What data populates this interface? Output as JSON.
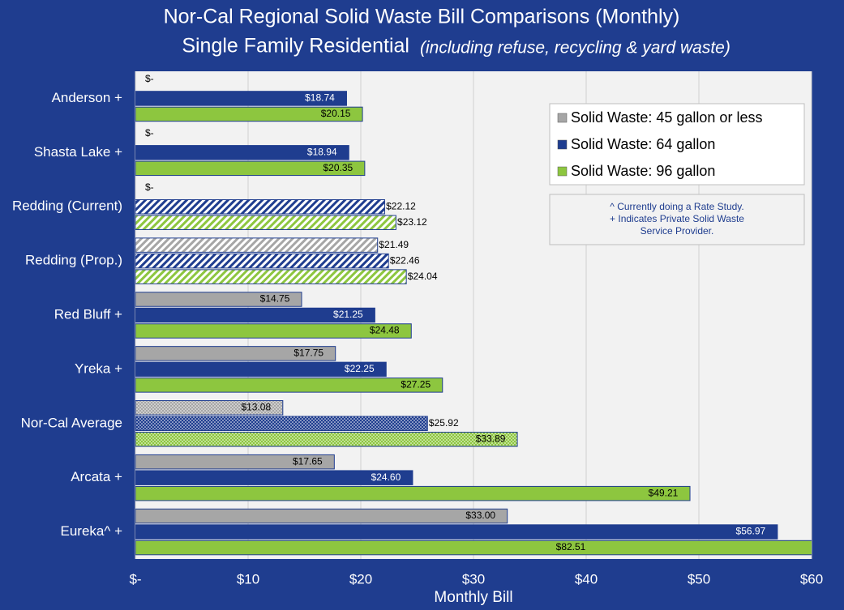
{
  "chart_data": {
    "type": "barh",
    "title": "Nor-Cal Regional Solid Waste Bill Comparisons (Monthly)",
    "subtitle": "Single Family Residential",
    "subtitle_note": "(including refuse, recycling & yard waste)",
    "x_label": "Monthly Bill",
    "categories": [
      "Anderson +",
      "Shasta Lake +",
      "Redding (Current)",
      "Redding (Prop.)",
      "Red Bluff +",
      "Yreka +",
      "Nor-Cal Average",
      "Arcata +",
      "Eureka^ +"
    ],
    "patterns": [
      null,
      null,
      "stripes",
      "stripes",
      null,
      null,
      "dots",
      null,
      null
    ],
    "series": [
      {
        "name": "Solid Waste: 45 gallon or less",
        "color": "#a6a6a6",
        "values": [
          0,
          0,
          0,
          21.49,
          14.75,
          17.75,
          13.08,
          17.65,
          33.0
        ],
        "value_labels": [
          "$-",
          "$-",
          "$-",
          "$21.49",
          "$14.75",
          "$17.75",
          "$13.08",
          "$17.65",
          "$33.00"
        ]
      },
      {
        "name": "Solid Waste: 64 gallon",
        "color": "#1f3d8f",
        "values": [
          18.74,
          18.94,
          22.12,
          22.46,
          21.25,
          22.25,
          25.92,
          24.6,
          56.97
        ],
        "value_labels": [
          "$18.74",
          "$18.94",
          "$22.12",
          "$22.46",
          "$21.25",
          "$22.25",
          "$25.92",
          "$24.60",
          "$56.97"
        ]
      },
      {
        "name": "Solid Waste: 96 gallon",
        "color": "#8dc63f",
        "values": [
          20.15,
          20.35,
          23.12,
          24.04,
          24.48,
          27.25,
          33.89,
          49.21,
          82.51
        ],
        "value_labels": [
          "$20.15",
          "$20.35",
          "$23.12",
          "$24.04",
          "$24.48",
          "$27.25",
          "$33.89",
          "$49.21",
          "$82.51"
        ]
      }
    ],
    "xlim": [
      0,
      60
    ],
    "xticks": [
      {
        "value": 0,
        "label": "$-"
      },
      {
        "value": 10,
        "label": "$10"
      },
      {
        "value": 20,
        "label": "$20"
      },
      {
        "value": 30,
        "label": "$30"
      },
      {
        "value": 40,
        "label": "$40"
      },
      {
        "value": 50,
        "label": "$50"
      },
      {
        "value": 60,
        "label": "$60"
      }
    ],
    "grid": true,
    "legend": "upper right",
    "note": [
      "^ Currently doing a Rate Study.",
      "+ Indicates Private Solid Waste",
      "Service Provider."
    ]
  }
}
